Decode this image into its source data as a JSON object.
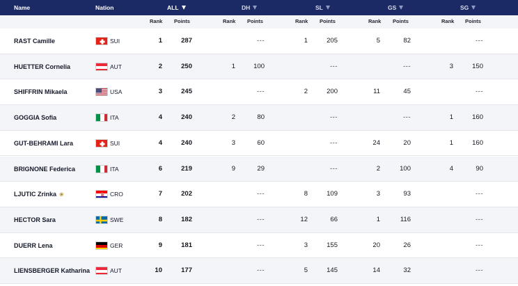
{
  "header": {
    "name": "Name",
    "nation": "Nation",
    "all": "ALL",
    "dh": "DH",
    "sl": "SL",
    "gs": "GS",
    "sg": "SG"
  },
  "subheader": {
    "rank": "Rank",
    "points": "Points"
  },
  "sort_column": "ALL",
  "rows": [
    {
      "name": "RAST Camille",
      "nation": "SUI",
      "all": {
        "rank": "1",
        "points": "287"
      },
      "dh": {
        "rank": "",
        "points": "---"
      },
      "sl": {
        "rank": "1",
        "points": "205"
      },
      "gs": {
        "rank": "5",
        "points": "82"
      },
      "sg": {
        "rank": "",
        "points": "---"
      }
    },
    {
      "name": "HUETTER Cornelia",
      "nation": "AUT",
      "all": {
        "rank": "2",
        "points": "250"
      },
      "dh": {
        "rank": "1",
        "points": "100"
      },
      "sl": {
        "rank": "",
        "points": "---"
      },
      "gs": {
        "rank": "",
        "points": "---"
      },
      "sg": {
        "rank": "3",
        "points": "150"
      }
    },
    {
      "name": "SHIFFRIN Mikaela",
      "nation": "USA",
      "all": {
        "rank": "3",
        "points": "245"
      },
      "dh": {
        "rank": "",
        "points": "---"
      },
      "sl": {
        "rank": "2",
        "points": "200"
      },
      "gs": {
        "rank": "11",
        "points": "45"
      },
      "sg": {
        "rank": "",
        "points": "---"
      }
    },
    {
      "name": "GOGGIA Sofia",
      "nation": "ITA",
      "all": {
        "rank": "4",
        "points": "240"
      },
      "dh": {
        "rank": "2",
        "points": "80"
      },
      "sl": {
        "rank": "",
        "points": "---"
      },
      "gs": {
        "rank": "",
        "points": "---"
      },
      "sg": {
        "rank": "1",
        "points": "160"
      }
    },
    {
      "name": "GUT-BEHRAMI Lara",
      "nation": "SUI",
      "all": {
        "rank": "4",
        "points": "240"
      },
      "dh": {
        "rank": "3",
        "points": "60"
      },
      "sl": {
        "rank": "",
        "points": "---"
      },
      "gs": {
        "rank": "24",
        "points": "20"
      },
      "sg": {
        "rank": "1",
        "points": "160"
      }
    },
    {
      "name": "BRIGNONE Federica",
      "nation": "ITA",
      "all": {
        "rank": "6",
        "points": "219"
      },
      "dh": {
        "rank": "9",
        "points": "29"
      },
      "sl": {
        "rank": "",
        "points": "---"
      },
      "gs": {
        "rank": "2",
        "points": "100"
      },
      "sg": {
        "rank": "4",
        "points": "90"
      }
    },
    {
      "name": "LJUTIC Zrinka",
      "nation": "CRO",
      "badge_icon": "crystal-globe-icon",
      "all": {
        "rank": "7",
        "points": "202"
      },
      "dh": {
        "rank": "",
        "points": "---"
      },
      "sl": {
        "rank": "8",
        "points": "109"
      },
      "gs": {
        "rank": "3",
        "points": "93"
      },
      "sg": {
        "rank": "",
        "points": "---"
      }
    },
    {
      "name": "HECTOR Sara",
      "nation": "SWE",
      "all": {
        "rank": "8",
        "points": "182"
      },
      "dh": {
        "rank": "",
        "points": "---"
      },
      "sl": {
        "rank": "12",
        "points": "66"
      },
      "gs": {
        "rank": "1",
        "points": "116"
      },
      "sg": {
        "rank": "",
        "points": "---"
      }
    },
    {
      "name": "DUERR Lena",
      "nation": "GER",
      "all": {
        "rank": "9",
        "points": "181"
      },
      "dh": {
        "rank": "",
        "points": "---"
      },
      "sl": {
        "rank": "3",
        "points": "155"
      },
      "gs": {
        "rank": "20",
        "points": "26"
      },
      "sg": {
        "rank": "",
        "points": "---"
      }
    },
    {
      "name": "LIENSBERGER Katharina",
      "nation": "AUT",
      "all": {
        "rank": "10",
        "points": "177"
      },
      "dh": {
        "rank": "",
        "points": "---"
      },
      "sl": {
        "rank": "5",
        "points": "145"
      },
      "gs": {
        "rank": "14",
        "points": "32"
      },
      "sg": {
        "rank": "",
        "points": "---"
      }
    }
  ],
  "colors": {
    "header_bg": "#1b2a64",
    "row_alt_bg": "#f4f5f8",
    "text": "#14171f"
  }
}
